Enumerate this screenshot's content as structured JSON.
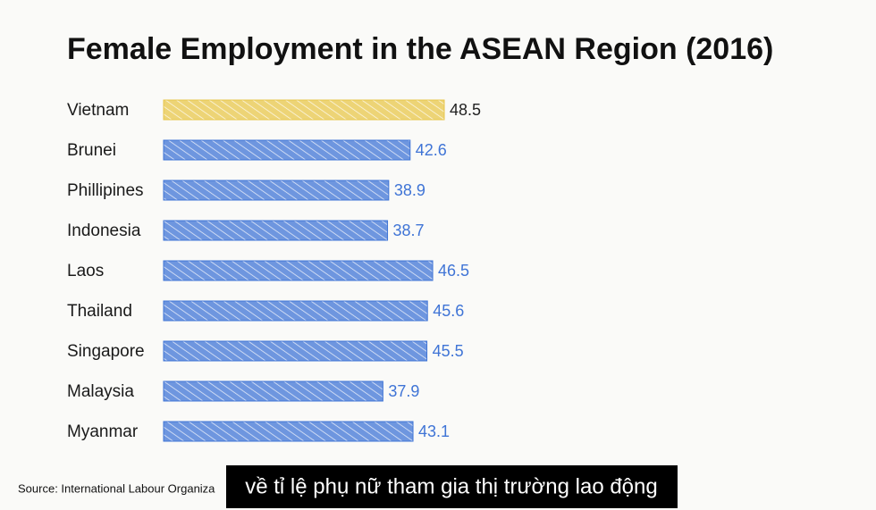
{
  "chart_data": {
    "type": "bar",
    "orientation": "horizontal",
    "title": "Female Employment in the ASEAN Region (2016)",
    "categories": [
      "Vietnam",
      "Brunei",
      "Phillipines",
      "Indonesia",
      "Laos",
      "Thailand",
      "Singapore",
      "Malaysia",
      "Myanmar"
    ],
    "values": [
      48.5,
      42.6,
      38.9,
      38.7,
      46.5,
      45.6,
      45.5,
      37.9,
      43.1
    ],
    "colors": [
      "#e8c64a",
      "#3f74d6",
      "#3f74d6",
      "#3f74d6",
      "#3f74d6",
      "#3f74d6",
      "#3f74d6",
      "#3f74d6",
      "#3f74d6"
    ],
    "source": "Source: International Labour Organiza"
  },
  "subtitle_caption": "về tỉ lệ phụ nữ tham gia thị trường lao động"
}
